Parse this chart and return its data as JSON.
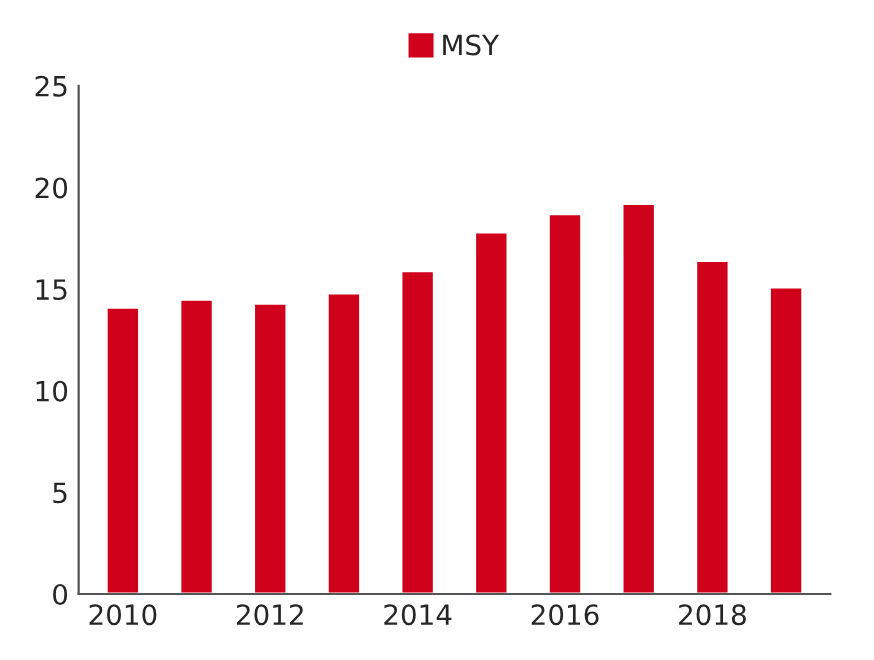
{
  "chart_data": {
    "type": "bar",
    "categories": [
      "2010",
      null,
      "2012",
      null,
      "2014",
      null,
      "2016",
      null,
      "2018",
      null
    ],
    "series": [
      {
        "name": "MSY",
        "color": "#d0021b",
        "values": [
          14.1,
          14.5,
          14.3,
          14.8,
          15.9,
          17.8,
          18.7,
          19.2,
          16.4,
          15.1
        ]
      }
    ],
    "ylim": [
      0,
      25
    ],
    "yticks": [
      0,
      5,
      10,
      15,
      20,
      25
    ],
    "grid": false,
    "legend": "top"
  }
}
